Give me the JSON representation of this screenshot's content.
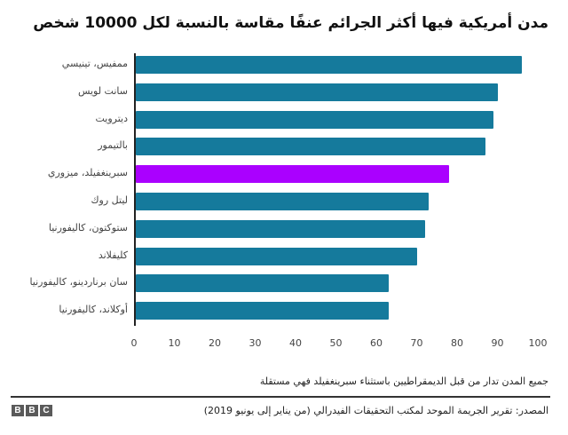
{
  "header": {
    "title": "مدن أمريكية فيها أكثر الجرائم عنفًا مقاسة بالنسبة لكل 10000 شخص"
  },
  "footer": {
    "note": "جميع المدن تدار من قبل الديمقراطيين باستثناء سبرينغفيلد فهي مستقلة",
    "source": "المصدر: تقرير الجريمة الموحد لمكتب التحقيقات الفيدرالي (من يناير إلى يونيو 2019)",
    "logo": [
      "B",
      "B",
      "C"
    ]
  },
  "colors": {
    "bar": "#157a9c",
    "highlight": "#aa00ff"
  },
  "chart_data": {
    "type": "bar",
    "orientation": "horizontal",
    "title": "مدن أمريكية فيها أكثر الجرائم عنفًا مقاسة بالنسبة لكل 10000 شخص",
    "xlabel": "",
    "ylabel": "",
    "xlim": [
      0,
      100
    ],
    "xticks": [
      "0",
      "10",
      "20",
      "30",
      "40",
      "50",
      "60",
      "70",
      "80",
      "90",
      "100"
    ],
    "grid": false,
    "legend": null,
    "categories": [
      "ممفيس، تينيسي",
      "سانت لويس",
      "ديترويت",
      "بالتيمور",
      "سبرينغفيلد، ميزوري",
      "ليتل روك",
      "ستوكتون، كاليفورنيا",
      "كليفلاند",
      "سان برناردينو، كاليفورنيا",
      "أوكلاند، كاليفورنيا"
    ],
    "values": [
      96,
      90,
      89,
      87,
      78,
      73,
      72,
      70,
      63,
      63
    ],
    "highlighted": [
      false,
      false,
      false,
      false,
      true,
      false,
      false,
      false,
      false,
      false
    ]
  }
}
